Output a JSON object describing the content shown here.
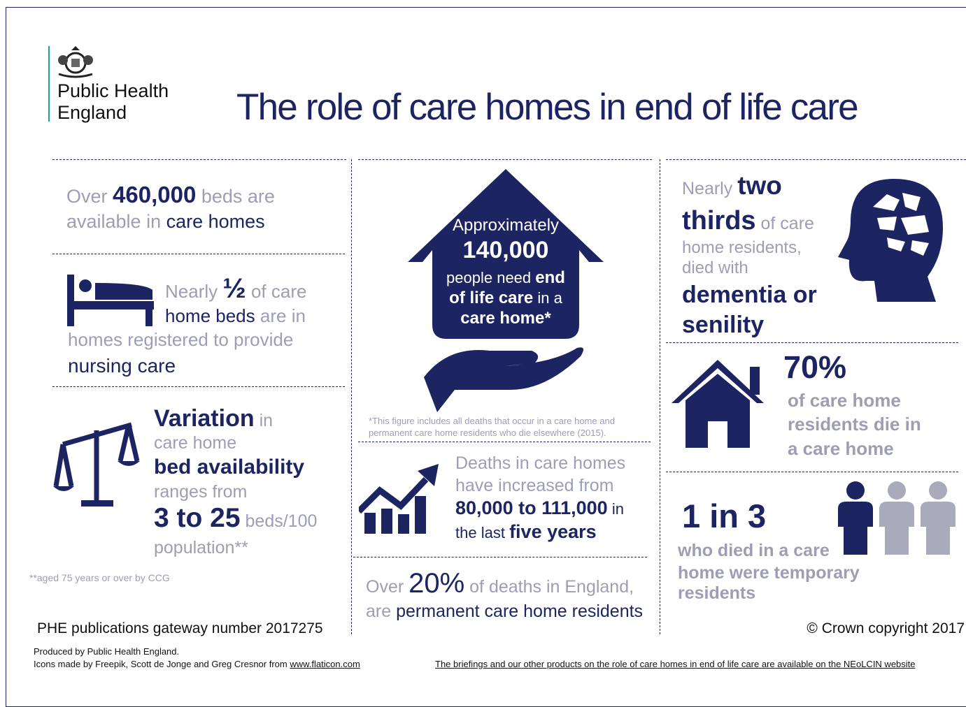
{
  "logo": {
    "line1": "Public Health",
    "line2": "England"
  },
  "title": "The role of care homes in end of life care",
  "beds": [
    "Over",
    "460,000",
    "beds are",
    "available in",
    "care homes"
  ],
  "nursing": [
    "Nearly",
    "½",
    "of care",
    "home beds",
    "are in",
    "homes registered to provide",
    "nursing care"
  ],
  "variation": [
    "Variation",
    "in",
    "care home",
    "bed availability",
    "ranges from",
    "3 to 25",
    "beds/100",
    "population**"
  ],
  "variation_note": "**aged 75 years or over by CCG",
  "eol": [
    "Approximately",
    "140,000",
    "people need",
    "end",
    "of life care",
    "in a",
    "care home*"
  ],
  "eol_footnote": "*This figure includes all deaths that occur in a care home and permanent care home residents who die elsewhere (2015).",
  "deaths": [
    "Deaths in care homes",
    "have increased from",
    "80,000 to 111,000",
    "in",
    "the last",
    "five years"
  ],
  "over20": [
    "Over",
    "20%",
    "of deaths in England,",
    "are",
    "permanent care home residents"
  ],
  "dementia": [
    "Nearly",
    "two",
    "thirds",
    "of care",
    "home residents,",
    "died with",
    "dementia or",
    "senility"
  ],
  "die70": [
    "70%",
    "of care home",
    "residents die in",
    "a care home"
  ],
  "temporary": [
    "1 in 3",
    "who died in a care",
    "home were temporary",
    "residents"
  ],
  "footer": {
    "gateway": "PHE publications gateway number 2017275",
    "copyright": "© Crown copyright 2017",
    "produced": "Produced by Public Health England.",
    "icons": "Icons made by Freepik, Scott de Jonge and Greg Cresnor from",
    "link": "www.flaticon.com",
    "briefings": "The briefings and our other products on the role of care homes in end of life care are available on the NEoLCIN website"
  }
}
